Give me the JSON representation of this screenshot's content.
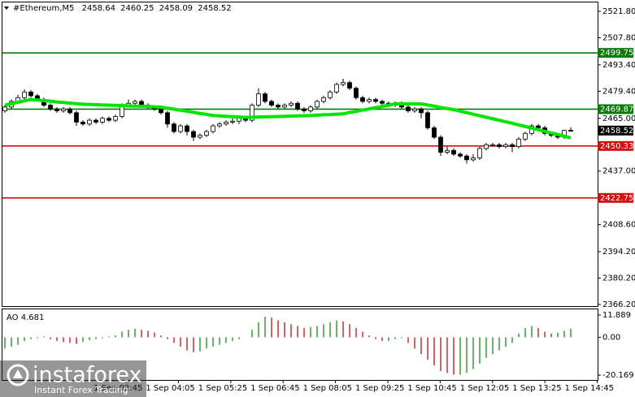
{
  "chart_data": [
    {
      "type": "candlestick",
      "symbol": "#Ethereum,M5",
      "ylim": [
        2366.2,
        2521.8
      ],
      "yticks": [
        {
          "value": 2521.8,
          "label": "2521.80"
        },
        {
          "value": 2507.8,
          "label": "2507.80"
        },
        {
          "value": 2493.4,
          "label": "2493.40"
        },
        {
          "value": 2479.4,
          "label": "2479.40"
        },
        {
          "value": 2465.0,
          "label": "2465.00"
        },
        {
          "value": 2437.0,
          "label": "2437.00"
        },
        {
          "value": 2408.6,
          "label": "2408.60"
        },
        {
          "value": 2394.2,
          "label": "2394.20"
        },
        {
          "value": 2380.2,
          "label": "2380.20"
        },
        {
          "value": 2366.2,
          "label": "2366.20"
        }
      ],
      "up_color": "#ffffff",
      "down_color": "#000000",
      "ohlc": [
        [
          2469,
          2472,
          2468,
          2471
        ],
        [
          2471,
          2475,
          2470,
          2474
        ],
        [
          2474,
          2477.5,
          2473,
          2476
        ],
        [
          2476,
          2480.5,
          2475,
          2479
        ],
        [
          2479,
          2480,
          2476,
          2477
        ],
        [
          2477,
          2478,
          2474,
          2475
        ],
        [
          2475,
          2476,
          2471,
          2472
        ],
        [
          2472,
          2473,
          2469,
          2470
        ],
        [
          2470,
          2471,
          2468,
          2469
        ],
        [
          2469,
          2471,
          2468,
          2470
        ],
        [
          2470,
          2471,
          2467,
          2468
        ],
        [
          2468,
          2469,
          2461,
          2463
        ],
        [
          2463,
          2464,
          2461,
          2462
        ],
        [
          2462,
          2465,
          2461,
          2464
        ],
        [
          2464,
          2465,
          2462,
          2463
        ],
        [
          2463,
          2466,
          2462,
          2465
        ],
        [
          2465,
          2466,
          2463,
          2464
        ],
        [
          2464,
          2467,
          2463,
          2466
        ],
        [
          2466,
          2473,
          2465,
          2472
        ],
        [
          2472,
          2475,
          2471,
          2473
        ],
        [
          2473,
          2475,
          2472,
          2474
        ],
        [
          2474,
          2475,
          2471,
          2472
        ],
        [
          2472,
          2473,
          2470,
          2471
        ],
        [
          2471,
          2472,
          2469,
          2470
        ],
        [
          2470,
          2471,
          2467,
          2468
        ],
        [
          2468,
          2469,
          2460,
          2462
        ],
        [
          2462,
          2463,
          2457,
          2458
        ],
        [
          2458,
          2462,
          2457,
          2461
        ],
        [
          2461,
          2462,
          2456,
          2458
        ],
        [
          2458,
          2459,
          2453,
          2455
        ],
        [
          2455,
          2457,
          2454,
          2456
        ],
        [
          2456,
          2459,
          2455,
          2458
        ],
        [
          2458,
          2462,
          2457,
          2461
        ],
        [
          2461,
          2463,
          2460,
          2462
        ],
        [
          2462,
          2464,
          2461,
          2463
        ],
        [
          2463,
          2465,
          2462,
          2463.5
        ],
        [
          2463.5,
          2466,
          2462,
          2465
        ],
        [
          2465,
          2466,
          2463,
          2464
        ],
        [
          2464,
          2473,
          2463,
          2472
        ],
        [
          2472,
          2481,
          2471,
          2478
        ],
        [
          2478,
          2479,
          2473,
          2474
        ],
        [
          2474,
          2475,
          2471,
          2472
        ],
        [
          2472,
          2473,
          2470,
          2471
        ],
        [
          2471,
          2473,
          2470,
          2472
        ],
        [
          2472,
          2474,
          2471,
          2473
        ],
        [
          2473,
          2474,
          2469,
          2470
        ],
        [
          2470,
          2471,
          2468,
          2469
        ],
        [
          2469,
          2472,
          2468,
          2471
        ],
        [
          2471,
          2475,
          2470,
          2474
        ],
        [
          2474,
          2477,
          2473,
          2476
        ],
        [
          2476,
          2480,
          2475,
          2479
        ],
        [
          2479,
          2484,
          2478,
          2483
        ],
        [
          2483,
          2486,
          2482,
          2484
        ],
        [
          2484,
          2485,
          2480,
          2481
        ],
        [
          2481,
          2482,
          2475,
          2476
        ],
        [
          2476,
          2477,
          2473,
          2474
        ],
        [
          2474,
          2476,
          2473,
          2475
        ],
        [
          2475,
          2476,
          2473,
          2474
        ],
        [
          2474,
          2475,
          2472,
          2473
        ],
        [
          2473,
          2474,
          2471,
          2472
        ],
        [
          2472,
          2474,
          2471,
          2473
        ],
        [
          2473,
          2474,
          2470,
          2471
        ],
        [
          2471,
          2472,
          2468,
          2469
        ],
        [
          2469,
          2471,
          2468,
          2470
        ],
        [
          2470,
          2471,
          2465,
          2468
        ],
        [
          2468,
          2469,
          2459,
          2460
        ],
        [
          2460,
          2461,
          2454,
          2455
        ],
        [
          2455,
          2456,
          2445,
          2447
        ],
        [
          2447,
          2450,
          2446,
          2448
        ],
        [
          2448,
          2449,
          2445,
          2446
        ],
        [
          2446,
          2447,
          2444,
          2445
        ],
        [
          2445,
          2446,
          2441,
          2443
        ],
        [
          2443,
          2446,
          2442,
          2444
        ],
        [
          2444,
          2450,
          2443,
          2449
        ],
        [
          2449,
          2452,
          2448,
          2451
        ],
        [
          2451,
          2452,
          2450,
          2451
        ],
        [
          2451,
          2452,
          2449,
          2450
        ],
        [
          2450,
          2452,
          2449,
          2451
        ],
        [
          2451,
          2452,
          2447,
          2450
        ],
        [
          2450,
          2455,
          2449,
          2454
        ],
        [
          2454,
          2458,
          2453,
          2457
        ],
        [
          2457,
          2462,
          2456,
          2461
        ],
        [
          2461,
          2462,
          2459,
          2460
        ],
        [
          2460,
          2461,
          2456,
          2457
        ],
        [
          2457,
          2458,
          2455,
          2456
        ],
        [
          2456,
          2457,
          2454,
          2455
        ],
        [
          2455,
          2459,
          2454,
          2458.6
        ],
        [
          2458.64,
          2460.25,
          2458.09,
          2458.52
        ]
      ],
      "ma": {
        "color": "#00e600",
        "values": [
          2472,
          2472.8,
          2473.5,
          2474.3,
          2475,
          2474.7,
          2474.4,
          2474.1,
          2473.7,
          2473.4,
          2473.1,
          2472.8,
          2472.5,
          2472.4,
          2472.3,
          2472.1,
          2472,
          2471.9,
          2471.8,
          2471.6,
          2471.5,
          2471.4,
          2471.3,
          2471.1,
          2471,
          2470.4,
          2469.9,
          2469.3,
          2468.8,
          2468.2,
          2467.6,
          2467.1,
          2466.5,
          2466.3,
          2466.1,
          2465.9,
          2465.7,
          2465.5,
          2465.6,
          2465.7,
          2465.8,
          2465.9,
          2466,
          2466.1,
          2466.2,
          2466.3,
          2466.4,
          2466.5,
          2466.7,
          2466.9,
          2467.0,
          2467.2,
          2467.4,
          2468.1,
          2468.7,
          2469.4,
          2470.0,
          2470.7,
          2471.4,
          2472,
          2472.7,
          2472.7,
          2472.7,
          2472.7,
          2472.7,
          2472.1,
          2471.5,
          2470.8,
          2470.2,
          2469.6,
          2468.8,
          2468,
          2467.2,
          2466.4,
          2465.6,
          2464.8,
          2464,
          2463.2,
          2462.4,
          2461.5,
          2460.7,
          2459.8,
          2459,
          2458.1,
          2457.2,
          2456.4,
          2455.5,
          2454.6
        ]
      },
      "levels": [
        {
          "value": 2499.75,
          "color": "#0a7a0a"
        },
        {
          "value": 2469.87,
          "color": "#0a7a0a"
        },
        {
          "value": 2450.33,
          "color": "#d01010"
        },
        {
          "value": 2422.75,
          "color": "#d01010"
        }
      ],
      "last_price": 2458.52
    },
    {
      "type": "bar",
      "title": "AO 4.681",
      "ylim": [
        -20.169,
        11.889
      ],
      "yticks": [
        11.889,
        {
          "value": 0,
          "label": "0.00"
        },
        -20.169
      ],
      "up_color": "#1a8a1a",
      "down_color": "#c01010",
      "values": [
        -6,
        -5,
        -4,
        -2,
        -1,
        -0.5,
        0.5,
        -1,
        -2,
        -2.5,
        -3,
        -3.5,
        -2.5,
        -1.5,
        -1,
        -0.5,
        0.5,
        1,
        3,
        4,
        4.5,
        4,
        3.5,
        2.5,
        1,
        -1,
        -3,
        -5,
        -7,
        -8,
        -7.5,
        -6,
        -5,
        -4,
        -3,
        -2,
        -1,
        0,
        4,
        8,
        11,
        10.5,
        9,
        8,
        7,
        6,
        5,
        5.5,
        6,
        7,
        8,
        9,
        8.5,
        7,
        5,
        3,
        1,
        -1,
        -2,
        -2,
        -1,
        -0.5,
        -3,
        -6,
        -9,
        -12,
        -15,
        -18,
        -19,
        -20,
        -20,
        -19,
        -17,
        -14,
        -11,
        -9,
        -7,
        -5,
        -3,
        2,
        5,
        6,
        5,
        3,
        2,
        2.5,
        3.5,
        4.681
      ],
      "x_labels": [
        "1 Sep 02:45",
        "1 Sep 04:05",
        "1 Sep 05:25",
        "1 Sep 06:45",
        "1 Sep 08:05",
        "1 Sep 09:25",
        "1 Sep 10:45",
        "1 Sep 12:05",
        "1 Sep 13:25",
        "1 Sep 14:45"
      ]
    }
  ],
  "watermark": {
    "brand": "instaforex",
    "tagline": "Instant Forex Trading"
  }
}
